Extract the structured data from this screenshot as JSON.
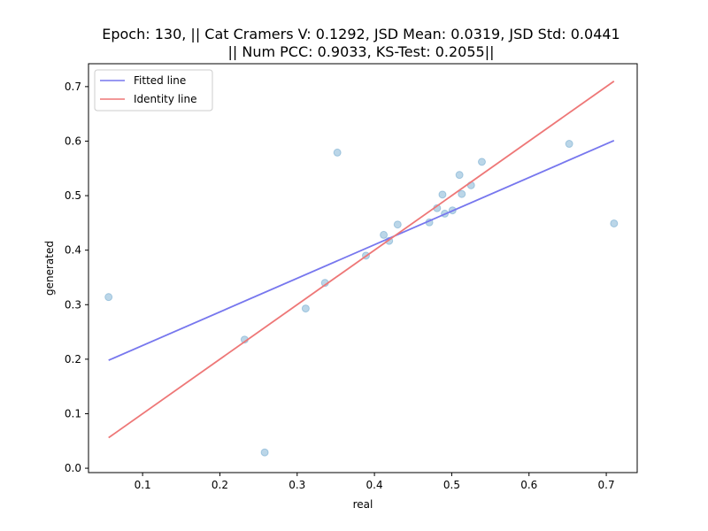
{
  "chart_data": {
    "type": "scatter",
    "title_line1": "Epoch: 130, || Cat Cramers V: 0.1292, JSD Mean: 0.0319, JSD Std: 0.0441",
    "title_line2": "|| Num PCC: 0.9033, KS-Test: 0.2055||",
    "xlabel": "real",
    "ylabel": "generated",
    "xlim": [
      0.03,
      0.74
    ],
    "ylim": [
      -0.008,
      0.742
    ],
    "xticks": [
      0.1,
      0.2,
      0.3,
      0.4,
      0.5,
      0.6,
      0.7
    ],
    "yticks": [
      0.0,
      0.1,
      0.2,
      0.3,
      0.4,
      0.5,
      0.6,
      0.7
    ],
    "grid": false,
    "legend_position": "top-left",
    "points": [
      {
        "x": 0.056,
        "y": 0.314
      },
      {
        "x": 0.232,
        "y": 0.236
      },
      {
        "x": 0.258,
        "y": 0.029
      },
      {
        "x": 0.311,
        "y": 0.293
      },
      {
        "x": 0.336,
        "y": 0.34
      },
      {
        "x": 0.352,
        "y": 0.579
      },
      {
        "x": 0.389,
        "y": 0.39
      },
      {
        "x": 0.412,
        "y": 0.428
      },
      {
        "x": 0.419,
        "y": 0.417
      },
      {
        "x": 0.43,
        "y": 0.447
      },
      {
        "x": 0.471,
        "y": 0.451
      },
      {
        "x": 0.481,
        "y": 0.477
      },
      {
        "x": 0.488,
        "y": 0.502
      },
      {
        "x": 0.491,
        "y": 0.467
      },
      {
        "x": 0.501,
        "y": 0.473
      },
      {
        "x": 0.51,
        "y": 0.538
      },
      {
        "x": 0.513,
        "y": 0.503
      },
      {
        "x": 0.525,
        "y": 0.519
      },
      {
        "x": 0.539,
        "y": 0.562
      },
      {
        "x": 0.652,
        "y": 0.595
      },
      {
        "x": 0.71,
        "y": 0.449
      }
    ],
    "series": [
      {
        "name": "Fitted line",
        "color": "#7777ee",
        "x": [
          0.056,
          0.71
        ],
        "y": [
          0.198,
          0.601
        ]
      },
      {
        "name": "Identity line",
        "color": "#ee7777",
        "x": [
          0.056,
          0.71
        ],
        "y": [
          0.056,
          0.71
        ]
      }
    ],
    "point_color": "#1f77b4"
  }
}
